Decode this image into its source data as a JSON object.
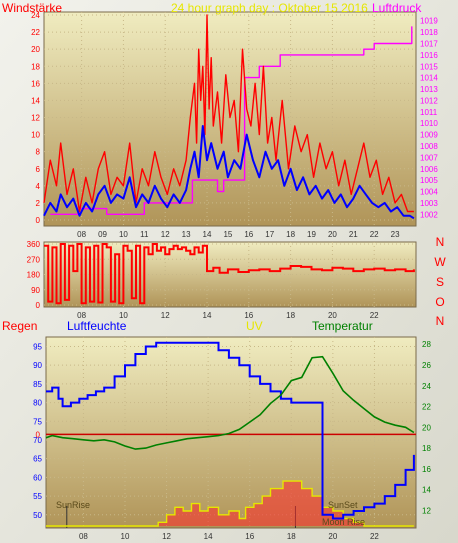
{
  "chart_data": [
    {
      "type": "line",
      "title": "24 hour graph day : Oktober 15 2016",
      "left_axis_label": "Windstärke",
      "right_axis_label": "Luftdruck",
      "x_ticks": [
        "08",
        "10",
        "12",
        "14",
        "16",
        "18",
        "20",
        "22"
      ],
      "x_ticks_shifted": [
        "09",
        "11",
        "13",
        "15",
        "17",
        "19",
        "21",
        "23"
      ],
      "y_left_ticks": [
        0,
        2,
        4,
        6,
        8,
        10,
        12,
        14,
        16,
        18,
        20,
        22,
        24
      ],
      "y_left_range": [
        0,
        24
      ],
      "y_right_ticks": [
        1002,
        1003,
        1004,
        1005,
        1006,
        1007,
        1008,
        1009,
        1010,
        1011,
        1012,
        1013,
        1014,
        1015,
        1016,
        1017,
        1018,
        1019
      ],
      "y_right_range": [
        1001.5,
        1019.5
      ],
      "colors": {
        "gust": "#ff0000",
        "wind": "#0000ff",
        "pressure": "#ff00ff",
        "left_label": "#ff0000",
        "right_label": "#ff00ff",
        "title": "#e6e600"
      },
      "series": [
        {
          "key": "pressure",
          "axis": "right",
          "x": [
            6.5,
            7.9,
            8.5,
            9.0,
            9.2,
            10.0,
            10.3,
            10.6,
            11.0,
            11.3,
            13.3,
            14.5,
            14.8,
            15.8,
            16.5,
            17.0,
            17.5,
            18.5,
            21.5,
            22.0,
            23.6,
            23.8
          ],
          "y": [
            1002,
            1002.5,
            1002.5,
            1002.5,
            1002,
            1002,
            1002,
            1002,
            1003,
            1003,
            1005,
            1004,
            1005,
            1014,
            1015,
            1015,
            1016,
            1016,
            1016.5,
            1017,
            1017,
            1018.5
          ]
        },
        {
          "key": "gust",
          "axis": "left",
          "x": [
            6.2,
            6.5,
            6.8,
            7.0,
            7.3,
            7.6,
            7.9,
            8.2,
            8.5,
            8.8,
            9.1,
            9.4,
            9.7,
            10.0,
            10.3,
            10.6,
            10.9,
            11.2,
            11.5,
            11.8,
            12.1,
            12.4,
            12.7,
            13.0,
            13.2,
            13.4,
            13.5,
            13.6,
            13.7,
            13.8,
            13.9,
            14.0,
            14.1,
            14.2,
            14.3,
            14.5,
            14.7,
            14.9,
            15.1,
            15.3,
            15.5,
            15.7,
            15.9,
            16.1,
            16.3,
            16.5,
            16.7,
            16.9,
            17.1,
            17.3,
            17.6,
            17.9,
            18.2,
            18.5,
            18.8,
            19.1,
            19.4,
            19.7,
            20.0,
            20.3,
            20.6,
            20.9,
            21.2,
            21.5,
            21.8,
            22.1,
            22.4,
            22.7,
            23.0,
            23.3,
            23.6,
            23.9
          ],
          "y": [
            2,
            7,
            4,
            9,
            3,
            6,
            1,
            5,
            2,
            6,
            8,
            3,
            5,
            4,
            9,
            2,
            6,
            4,
            8,
            5,
            3,
            6,
            4,
            7,
            12,
            16,
            9,
            20,
            14,
            18,
            10,
            24,
            13,
            19,
            11,
            15,
            9,
            17,
            12,
            14,
            8,
            20,
            13,
            11,
            16,
            10,
            18,
            9,
            12,
            7,
            14,
            6,
            11,
            8,
            10,
            5,
            9,
            6,
            8,
            4,
            7,
            3,
            6,
            9,
            5,
            7,
            3,
            5,
            2,
            3,
            1,
            1
          ]
        },
        {
          "key": "wind",
          "axis": "left",
          "x": [
            6.2,
            6.5,
            6.8,
            7.0,
            7.3,
            7.6,
            7.9,
            8.2,
            8.5,
            8.8,
            9.1,
            9.4,
            9.7,
            10.0,
            10.3,
            10.6,
            10.9,
            11.2,
            11.5,
            11.8,
            12.1,
            12.4,
            12.7,
            13.0,
            13.2,
            13.4,
            13.6,
            13.8,
            14.0,
            14.2,
            14.5,
            14.8,
            15.0,
            15.3,
            15.6,
            15.9,
            16.2,
            16.5,
            16.8,
            17.1,
            17.4,
            17.7,
            18.0,
            18.3,
            18.6,
            18.9,
            19.2,
            19.5,
            19.8,
            20.1,
            20.4,
            20.7,
            21.0,
            21.3,
            21.6,
            21.9,
            22.2,
            22.5,
            22.8,
            23.1,
            23.4,
            23.7,
            23.9
          ],
          "y": [
            0.5,
            2,
            1,
            3,
            1.5,
            2.5,
            0.5,
            2,
            1,
            3,
            4,
            2,
            3,
            2.5,
            5,
            1.5,
            3,
            2,
            4,
            2.5,
            1.5,
            3,
            2,
            3.5,
            6,
            8,
            5,
            11,
            7,
            9,
            6,
            8,
            5,
            7,
            6,
            10,
            7,
            5,
            8,
            6,
            7,
            4,
            6,
            3.5,
            5,
            3,
            4,
            2.5,
            3.5,
            2,
            3,
            1.5,
            2.5,
            4,
            3,
            2,
            1.5,
            2,
            1,
            1.5,
            0.5,
            0.5,
            0.2
          ]
        }
      ]
    },
    {
      "type": "line",
      "title": "",
      "y_left_ticks": [
        0,
        90,
        180,
        270,
        360
      ],
      "y_left_range": [
        0,
        360
      ],
      "right_labels": [
        "N",
        "W",
        "S",
        "O",
        "N"
      ],
      "colors": {
        "direction": "#ff0000",
        "right_labels": "#ff0000"
      },
      "series": [
        {
          "key": "direction",
          "x": [
            6.2,
            6.4,
            6.6,
            6.8,
            7.0,
            7.2,
            7.4,
            7.6,
            7.8,
            8.0,
            8.2,
            8.4,
            8.6,
            8.8,
            9.0,
            9.2,
            9.4,
            9.6,
            9.8,
            10.0,
            10.2,
            10.4,
            10.6,
            10.8,
            11.0,
            11.2,
            11.4,
            11.6,
            11.8,
            12.0,
            12.2,
            12.4,
            12.6,
            12.8,
            13.0,
            13.2,
            13.4,
            13.6,
            13.8,
            14.0,
            14.3,
            14.6,
            15.0,
            15.5,
            16.0,
            16.5,
            17.0,
            17.5,
            18.0,
            18.5,
            19.0,
            19.5,
            20.0,
            20.5,
            21.0,
            21.5,
            22.0,
            22.5,
            23.0,
            23.5,
            23.9
          ],
          "y": [
            350,
            20,
            340,
            10,
            360,
            30,
            350,
            200,
            360,
            10,
            340,
            20,
            350,
            15,
            360,
            340,
            20,
            300,
            10,
            350,
            320,
            40,
            350,
            10,
            340,
            300,
            360,
            320,
            340,
            300,
            330,
            350,
            330,
            340,
            320,
            300,
            340,
            310,
            350,
            200,
            220,
            190,
            210,
            195,
            205,
            210,
            200,
            215,
            230,
            225,
            210,
            205,
            220,
            215,
            200,
            210,
            215,
            205,
            210,
            200,
            210
          ]
        }
      ]
    },
    {
      "type": "line",
      "labels": {
        "rain": "Regen",
        "humidity": "Luftfeuchte",
        "uv": "UV",
        "temperature": "Temperatur"
      },
      "label_colors": {
        "rain": "#ff0000",
        "humidity": "#0000ff",
        "uv": "#e6e600",
        "temperature": "#008000"
      },
      "annotations": [
        "SunRise",
        "SunSet",
        "Moon Rise"
      ],
      "y_rain_ticks": [
        0
      ],
      "y_left_ticks": [
        50,
        55,
        60,
        65,
        70,
        75,
        80,
        85,
        90,
        95
      ],
      "y_left_range": [
        47,
        97
      ],
      "y_right_ticks": [
        12,
        14,
        16,
        18,
        20,
        22,
        24,
        26,
        28
      ],
      "y_right_range": [
        10.5,
        28.5
      ],
      "series": [
        {
          "key": "humidity",
          "axis": "left",
          "x": [
            6.2,
            6.5,
            6.8,
            7.0,
            7.4,
            7.8,
            8.2,
            8.6,
            9.0,
            9.5,
            10.0,
            10.5,
            11.0,
            11.5,
            12.0,
            12.5,
            13.0,
            13.5,
            14.0,
            14.5,
            15.0,
            15.5,
            16.0,
            16.5,
            17.0,
            17.5,
            18.0,
            18.5,
            19.0,
            19.5,
            20.0,
            20.5,
            21.0,
            21.5,
            22.0,
            22.5,
            23.0,
            23.5,
            23.9
          ],
          "y": [
            83,
            84,
            81,
            79,
            80,
            81,
            82,
            83,
            84,
            87,
            90,
            93,
            95,
            96,
            96,
            96,
            96,
            96,
            96,
            94,
            92,
            90,
            87,
            85,
            83,
            81,
            80,
            80,
            80,
            50,
            49,
            50,
            51,
            52,
            53,
            55,
            58,
            62,
            66
          ]
        },
        {
          "key": "temperature",
          "axis": "right",
          "x": [
            6.2,
            6.5,
            7.0,
            7.5,
            8.0,
            8.5,
            9.0,
            9.5,
            10.0,
            10.5,
            11.0,
            11.5,
            12.0,
            12.5,
            13.0,
            13.5,
            14.0,
            14.5,
            15.0,
            15.5,
            16.0,
            16.5,
            17.0,
            17.5,
            18.0,
            18.5,
            19.0,
            19.5,
            20.0,
            20.5,
            21.0,
            21.5,
            22.0,
            22.5,
            23.0,
            23.5,
            23.9
          ],
          "y": [
            19,
            19.2,
            19,
            18.9,
            18.8,
            18.7,
            18.8,
            18.6,
            18.2,
            17.9,
            18,
            18.3,
            18.5,
            18.7,
            18.9,
            19,
            19.1,
            19.2,
            19.4,
            19.8,
            20.5,
            21.2,
            22.3,
            23.1,
            24.5,
            24.8,
            26.7,
            26.8,
            25.2,
            23.5,
            22.6,
            21.8,
            21,
            20.5,
            20.2,
            20,
            19.5
          ]
        },
        {
          "key": "uv",
          "axis": "left",
          "x": [
            6.2,
            10.0,
            10.6,
            11.2,
            11.6,
            12.0,
            12.4,
            12.8,
            13.2,
            13.6,
            14.0,
            14.5,
            15.0,
            15.5,
            15.8,
            16.2,
            16.6,
            17.0,
            17.6,
            18.0,
            18.5,
            19.0,
            19.5,
            20.0,
            20.5,
            21.0,
            21.5,
            22.0,
            23.9
          ],
          "y": [
            47,
            47,
            47,
            47,
            48,
            50,
            52,
            51,
            53,
            51,
            52,
            50,
            51,
            49,
            52,
            53,
            55,
            57,
            59,
            59,
            57,
            55,
            52,
            51,
            49,
            48,
            47,
            47,
            47
          ]
        },
        {
          "key": "rain",
          "axis": "left",
          "x": [
            6.2,
            10.0,
            11.5,
            12.0,
            12.5,
            13.0,
            14.0,
            14.5,
            15.0,
            16.0,
            16.5,
            17.0,
            17.5,
            18.0,
            18.5,
            19.0,
            20.0,
            23.9
          ],
          "y": [
            0,
            0,
            0,
            0.4,
            0.6,
            0.2,
            0,
            0.2,
            0.5,
            0,
            1,
            2,
            2.5,
            2,
            1.5,
            0.4,
            0,
            0
          ]
        }
      ]
    }
  ]
}
